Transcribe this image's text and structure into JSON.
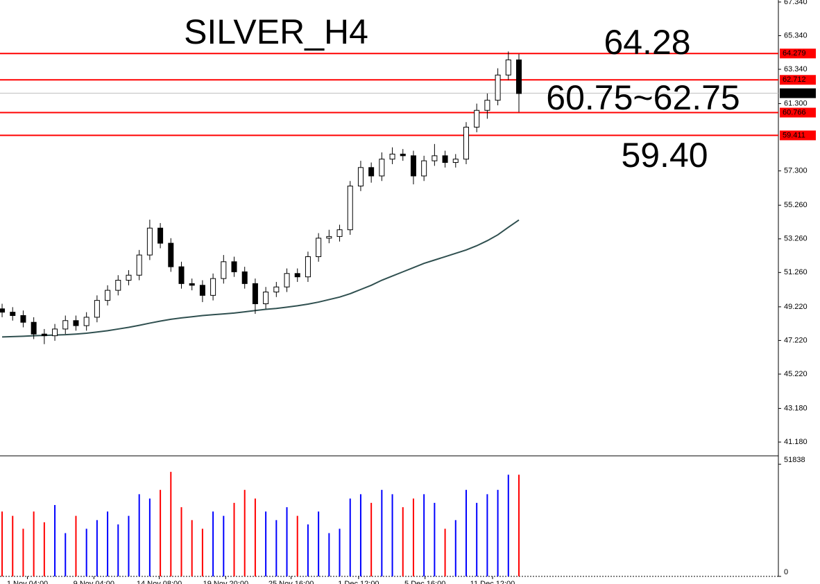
{
  "chart_data": {
    "type": "candlestick",
    "title": "SILVER_H4",
    "annotations": [
      {
        "text": "64.28",
        "color": "#ff0000"
      },
      {
        "text": "60.75~62.75",
        "color": "#000080"
      },
      {
        "text": "59.40",
        "color": "#ff0000"
      }
    ],
    "xlim": [
      -0.2,
      73.6
    ],
    "xticks": [
      {
        "value": 2.4,
        "label": "1 Nov 04:00"
      },
      {
        "value": 8.7,
        "label": "9 Nov 04:00"
      },
      {
        "value": 14.9,
        "label": "14 Nov 08:00"
      },
      {
        "value": 21.2,
        "label": "19 Nov 20:00"
      },
      {
        "value": 27.4,
        "label": "25 Nov 16:00"
      },
      {
        "value": 33.8,
        "label": "1 Dec 12:00"
      },
      {
        "value": 40.1,
        "label": "5 Dec 16:00"
      },
      {
        "value": 46.5,
        "label": "11 Dec 12:00"
      }
    ],
    "ylim": [
      40.36,
      67.46
    ],
    "yticks": [
      {
        "value": 67.34,
        "label": "67.340"
      },
      {
        "value": 65.34,
        "label": "65.340"
      },
      {
        "value": 63.34,
        "label": "63.340"
      },
      {
        "value": 61.3,
        "label": "61.300"
      },
      {
        "value": 57.3,
        "label": "57.300"
      },
      {
        "value": 55.26,
        "label": "55.260"
      },
      {
        "value": 53.26,
        "label": "53.260"
      },
      {
        "value": 51.26,
        "label": "51.260"
      },
      {
        "value": 49.22,
        "label": "49.220"
      },
      {
        "value": 47.22,
        "label": "47.220"
      },
      {
        "value": 45.22,
        "label": "45.220"
      },
      {
        "value": 43.18,
        "label": "43.180"
      },
      {
        "value": 41.18,
        "label": "41.180"
      }
    ],
    "candles": {
      "up_color": "#ffffff",
      "down_color": "#000000",
      "outline": "#000000",
      "open": [
        49.1,
        48.9,
        48.7,
        48.3,
        47.6,
        47.5,
        47.9,
        48.4,
        48.1,
        48.6,
        49.6,
        50.2,
        50.8,
        51.1,
        52.3,
        53.9,
        53.0,
        51.6,
        50.6,
        50.5,
        49.9,
        50.9,
        51.9,
        51.3,
        50.6,
        49.4,
        50.1,
        50.4,
        51.2,
        51.0,
        52.2,
        53.3,
        53.4,
        53.8,
        56.4,
        57.5,
        57.0,
        58.0,
        58.3,
        58.2,
        57.0,
        57.9,
        58.2,
        57.8,
        58.0,
        59.9,
        60.9,
        61.5,
        63.0,
        63.9
      ],
      "high": [
        49.4,
        49.2,
        49.0,
        48.6,
        47.9,
        48.2,
        48.7,
        48.7,
        48.9,
        49.9,
        50.5,
        51.1,
        51.4,
        52.6,
        54.4,
        54.2,
        53.3,
        51.9,
        50.9,
        50.8,
        51.2,
        52.3,
        52.2,
        51.6,
        50.9,
        50.4,
        50.7,
        51.5,
        51.5,
        52.5,
        53.6,
        53.8,
        54.1,
        56.7,
        57.9,
        57.8,
        58.4,
        58.7,
        58.6,
        58.5,
        58.2,
        58.9,
        58.5,
        58.3,
        60.2,
        61.3,
        61.9,
        63.4,
        64.4,
        64.25
      ],
      "low": [
        48.6,
        48.4,
        48.0,
        47.3,
        47.0,
        47.2,
        47.6,
        47.8,
        47.8,
        48.3,
        49.3,
        49.9,
        50.5,
        50.8,
        52.0,
        52.7,
        51.3,
        50.3,
        50.2,
        49.5,
        49.6,
        50.6,
        51.0,
        50.3,
        48.8,
        49.1,
        49.8,
        50.1,
        50.7,
        50.7,
        51.9,
        53.0,
        53.1,
        53.5,
        56.1,
        56.6,
        56.7,
        57.7,
        57.9,
        56.5,
        56.7,
        57.6,
        57.5,
        57.5,
        57.7,
        59.6,
        60.4,
        61.2,
        62.7,
        60.8
      ],
      "close": [
        48.9,
        48.7,
        48.3,
        47.6,
        47.5,
        47.9,
        48.4,
        48.1,
        48.6,
        49.6,
        50.2,
        50.8,
        51.1,
        52.3,
        53.9,
        53.0,
        51.6,
        50.6,
        50.5,
        49.9,
        50.9,
        51.9,
        51.3,
        50.6,
        49.4,
        50.1,
        50.4,
        51.2,
        51.0,
        52.2,
        53.3,
        53.4,
        53.8,
        56.4,
        57.5,
        57.0,
        58.0,
        58.3,
        58.2,
        57.0,
        57.9,
        58.2,
        57.8,
        58.0,
        59.9,
        60.9,
        61.5,
        63.0,
        63.9,
        61.9
      ]
    },
    "ma": {
      "color": "#2f4f4f",
      "values": [
        47.43,
        47.45,
        47.47,
        47.5,
        47.52,
        47.54,
        47.56,
        47.6,
        47.65,
        47.72,
        47.8,
        47.9,
        48.0,
        48.12,
        48.25,
        48.37,
        48.48,
        48.56,
        48.63,
        48.7,
        48.75,
        48.8,
        48.85,
        48.92,
        49.0,
        49.07,
        49.12,
        49.2,
        49.28,
        49.38,
        49.5,
        49.65,
        49.8,
        50.0,
        50.25,
        50.5,
        50.8,
        51.05,
        51.3,
        51.55,
        51.8,
        52.0,
        52.2,
        52.4,
        52.6,
        52.85,
        53.15,
        53.5,
        53.95,
        54.38
      ]
    },
    "levels": [
      {
        "value": 64.279,
        "color": "#ff0000"
      },
      {
        "value": 62.712,
        "color": "#ff0000"
      },
      {
        "value": 60.766,
        "color": "#ff0000"
      },
      {
        "value": 59.411,
        "color": "#ff0000"
      }
    ],
    "current_price": {
      "value": 61.918,
      "color": "#000000"
    },
    "volume": {
      "up_color": "#0000ff",
      "down_color": "#ff0000",
      "ylim": [
        0,
        55080
      ],
      "yticks": [
        0,
        51838
      ],
      "values": [
        30000,
        28000,
        22000,
        30000,
        25000,
        33000,
        20000,
        28000,
        22000,
        26000,
        30000,
        24000,
        28000,
        38000,
        36000,
        40000,
        48300,
        32000,
        26000,
        22000,
        30000,
        28000,
        34000,
        40000,
        36000,
        30000,
        26000,
        32000,
        28000,
        24000,
        30000,
        20000,
        22000,
        36000,
        38000,
        34000,
        40000,
        38000,
        32000,
        36000,
        38000,
        34000,
        22000,
        26000,
        40000,
        34000,
        38000,
        40000,
        47000,
        47000
      ]
    }
  }
}
